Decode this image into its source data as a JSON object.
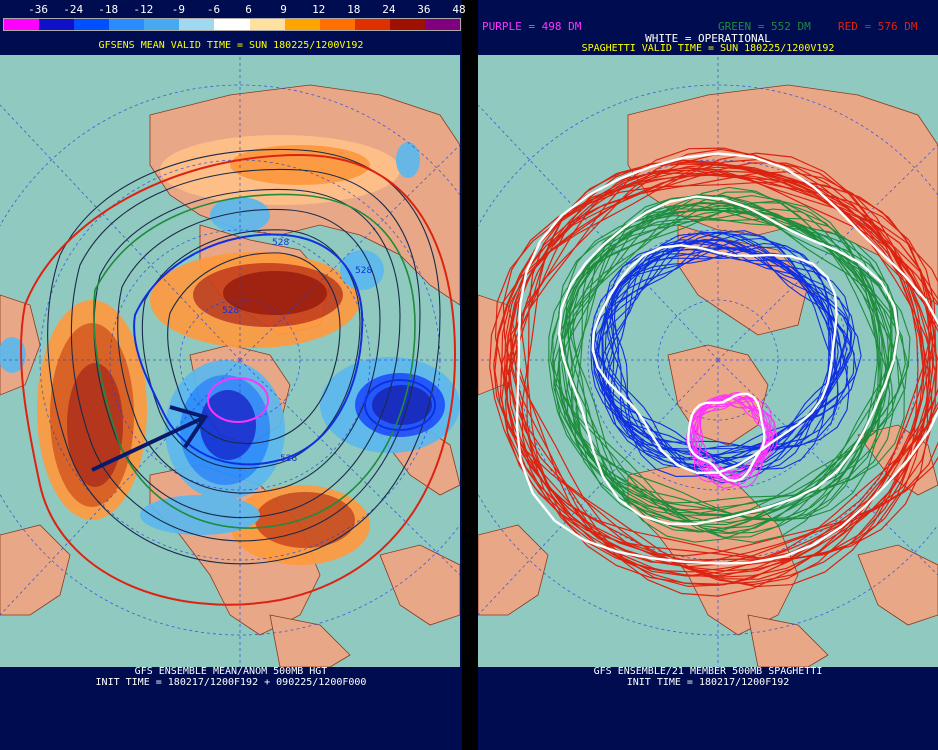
{
  "left_panel": {
    "scale": {
      "labels": [
        "-36",
        "-24",
        "-18",
        "-12",
        "-9",
        "-6",
        "6",
        "9",
        "12",
        "18",
        "24",
        "36",
        "48"
      ],
      "colors": [
        "#ff00ff",
        "#1010c8",
        "#0050ff",
        "#2a8cff",
        "#46aaf0",
        "#a0d8f0",
        "#ffffff",
        "#ffe0a0",
        "#ffa500",
        "#ff7000",
        "#e03000",
        "#a01000",
        "#800080"
      ]
    },
    "title": "GFSENS MEAN VALID TIME = SUN 180225/1200V192",
    "contour_labels": [
      "528",
      "528",
      "528",
      "528"
    ],
    "footer_line1": "GFS ENSEMBLE MEAN/ANOM 500MB HGT",
    "footer_line2": "INIT TIME = 180217/1200F192 + 090225/1200F000"
  },
  "right_panel": {
    "legend": {
      "purple": "PURPLE = 498 DM",
      "green": "GREEN = 552 DM",
      "red": "RED = 576 DM",
      "white": "WHITE = OPERATIONAL"
    },
    "title": "SPAGHETTI VALID TIME = SUN 180225/1200V192",
    "footer_line1": "GFS ENSEMBLE/21 MEMBER 500MB SPAGHETTI",
    "footer_line2": "INIT TIME = 180217/1200F192"
  },
  "colors": {
    "land": "#e8a888",
    "ocean": "#8fc9bf",
    "background": "#000c50",
    "purple": "#ff33ff",
    "green": "#1e8c3c",
    "red": "#dd2211",
    "blue": "#1030e0",
    "white": "#ffffff"
  }
}
